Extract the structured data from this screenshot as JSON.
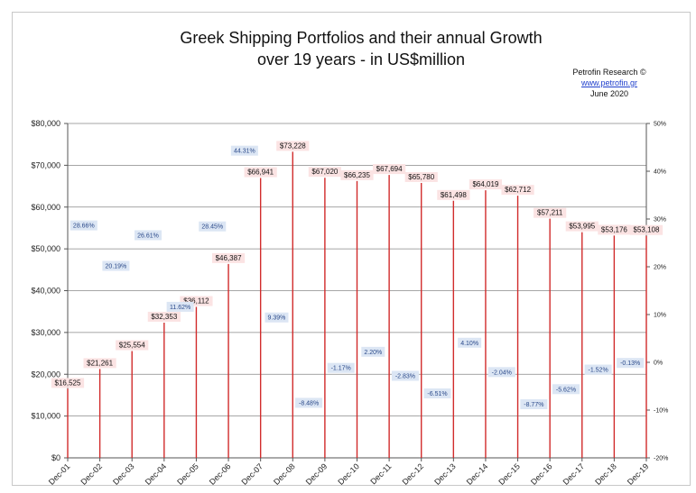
{
  "chart_data": {
    "type": "bar",
    "title_lines": [
      "Greek Shipping Portfolios and their annual Growth",
      "over 19 years - in US$million"
    ],
    "credit": {
      "org": "Petrofin  Research ©",
      "url": "www.petrofin.gr",
      "date": "June 2020"
    },
    "categories": [
      "Dec-01",
      "Dec-02",
      "Dec-03",
      "Dec-04",
      "Dec-05",
      "Dec-06",
      "Dec-07",
      "Dec-08",
      "Dec-09",
      "Dec-10",
      "Dec-11",
      "Dec-12",
      "Dec-13",
      "Dec-14",
      "Dec-15",
      "Dec-16",
      "Dec-17",
      "Dec-18",
      "Dec-19"
    ],
    "series": [
      {
        "values": [
          16525,
          21261,
          25554,
          32353,
          36112,
          46387,
          66941,
          73228,
          67020,
          66235,
          67694,
          65780,
          61498,
          64019,
          62712,
          57211,
          53995,
          53176,
          53108
        ],
        "labels": [
          "$16,525",
          "$21,261",
          "$25,554",
          "$32,353",
          "$36,112",
          "$46,387",
          "$66,941",
          "$73,228",
          "$67,020",
          "$66,235",
          "$67,694",
          "$65,780",
          "$61,498",
          "$64,019",
          "$62,712",
          "$57,211",
          "$53,995",
          "$53,176",
          "$53,108"
        ],
        "color": "#d12b2b"
      },
      {
        "values": [
          null,
          28.66,
          20.19,
          26.61,
          11.62,
          28.45,
          44.31,
          9.39,
          -8.48,
          -1.17,
          2.2,
          -2.83,
          -6.51,
          4.1,
          -2.04,
          -8.77,
          -5.62,
          -1.52,
          -0.13
        ],
        "labels": [
          "",
          "28.66%",
          "20.19%",
          "26.61%",
          "11.62%",
          "28.45%",
          "44.31%",
          "9.39%",
          "-8.48%",
          "-1.17%",
          "2.20%",
          "-2.83%",
          "-6.51%",
          "4.10%",
          "-2.04%",
          "-8.77%",
          "-5.62%",
          "-1.52%",
          "-0.13%"
        ],
        "axis": "right"
      }
    ],
    "left_axis": {
      "ylim": [
        0,
        80000
      ],
      "ticks": [
        "$0",
        "$10,000",
        "$20,000",
        "$30,000",
        "$40,000",
        "$50,000",
        "$60,000",
        "$70,000",
        "$80,000"
      ]
    },
    "right_axis": {
      "ylim": [
        -20,
        50
      ],
      "ticks": [
        "-20%",
        "-10%",
        "0%",
        "10%",
        "20%",
        "30%",
        "40%",
        "50%"
      ]
    },
    "grid": true,
    "value_label_bg": "#fbe3e3",
    "pct_label_bg": "#dce6f4",
    "pct_label_color": "#2b4a8a",
    "axis_color": "#555555",
    "grid_color": "#888888"
  }
}
